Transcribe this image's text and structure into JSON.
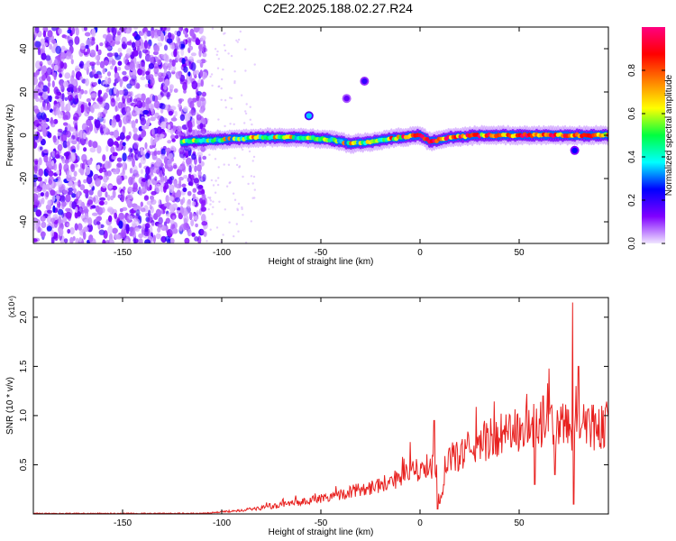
{
  "title": "C2E2.2025.188.02.27.R24",
  "chart_data": [
    {
      "type": "heatmap",
      "xlabel": "Height of straight line (km)",
      "ylabel": "Frequency (Hz)",
      "xlim": [
        -195,
        95
      ],
      "ylim": [
        -50,
        50
      ],
      "xticks": [
        -150,
        -100,
        -50,
        0,
        50
      ],
      "yticks": [
        -40,
        -20,
        0,
        20,
        40
      ],
      "colorbar": {
        "label": "Normalized spectral amplitude",
        "range": [
          0,
          1
        ],
        "ticks": [
          0.0,
          0.2,
          0.4,
          0.6,
          0.8
        ],
        "colormap": [
          "#f0e6ff",
          "#8000ff",
          "#0000ff",
          "#00ffff",
          "#00ff40",
          "#ffff00",
          "#ff8000",
          "#ff0000",
          "#ff0080"
        ]
      },
      "features": {
        "noise_region_x": [
          -195,
          -108
        ],
        "noise_typical_amplitude": [
          0.05,
          0.3
        ],
        "ridge": [
          [
            -120,
            -3
          ],
          [
            -100,
            -2
          ],
          [
            -80,
            -1
          ],
          [
            -60,
            -1
          ],
          [
            -45,
            -2
          ],
          [
            -35,
            -4
          ],
          [
            -25,
            -3
          ],
          [
            -10,
            -1
          ],
          [
            0,
            0
          ],
          [
            5,
            -3
          ],
          [
            15,
            -1
          ],
          [
            30,
            0
          ],
          [
            50,
            0
          ],
          [
            70,
            0
          ],
          [
            80,
            0
          ],
          [
            95,
            0
          ]
        ],
        "ridge_amplitude": [
          [
            -120,
            0.3
          ],
          [
            -100,
            0.45
          ],
          [
            -80,
            0.5
          ],
          [
            -60,
            0.45
          ],
          [
            -40,
            0.45
          ],
          [
            -20,
            0.55
          ],
          [
            -10,
            0.65
          ],
          [
            0,
            0.8
          ],
          [
            20,
            0.75
          ],
          [
            40,
            0.7
          ],
          [
            60,
            0.75
          ],
          [
            80,
            0.8
          ],
          [
            95,
            0.7
          ]
        ],
        "blobs": [
          {
            "x": -56,
            "y": 9,
            "amplitude": 0.35
          },
          {
            "x": -37,
            "y": 17,
            "amplitude": 0.15
          },
          {
            "x": -28,
            "y": 25,
            "amplitude": 0.2
          },
          {
            "x": 78,
            "y": -7,
            "amplitude": 0.25
          }
        ]
      }
    },
    {
      "type": "line",
      "xlabel": "Height of straight line (km)",
      "ylabel": "SNR (10 * v/v)",
      "y_multiplier": "(x10⁴)",
      "xlim": [
        -195,
        95
      ],
      "ylim": [
        0,
        2.2
      ],
      "xticks": [
        -150,
        -100,
        -50,
        0,
        50
      ],
      "yticks": [
        0.5,
        1.0,
        1.5,
        2.0
      ],
      "ytick_labels": [
        "0.5",
        "1.0",
        "1.5",
        "2.0"
      ],
      "series_color": "#e8211f",
      "trend": [
        [
          -195,
          0.005
        ],
        [
          -110,
          0.005
        ],
        [
          -100,
          0.02
        ],
        [
          -80,
          0.06
        ],
        [
          -60,
          0.12
        ],
        [
          -40,
          0.2
        ],
        [
          -20,
          0.3
        ],
        [
          0,
          0.45
        ],
        [
          8,
          0.52
        ],
        [
          10,
          0.1
        ],
        [
          15,
          0.55
        ],
        [
          30,
          0.72
        ],
        [
          40,
          0.8
        ],
        [
          55,
          0.88
        ],
        [
          70,
          0.9
        ],
        [
          75,
          0.88
        ],
        [
          95,
          0.9
        ]
      ],
      "spikes": [
        [
          7,
          0.95
        ],
        [
          9,
          0.05
        ],
        [
          77,
          2.15
        ],
        [
          77.5,
          0.1
        ],
        [
          80,
          1.5
        ],
        [
          62,
          1.2
        ],
        [
          68,
          0.4
        ],
        [
          58,
          0.3
        ]
      ]
    }
  ]
}
